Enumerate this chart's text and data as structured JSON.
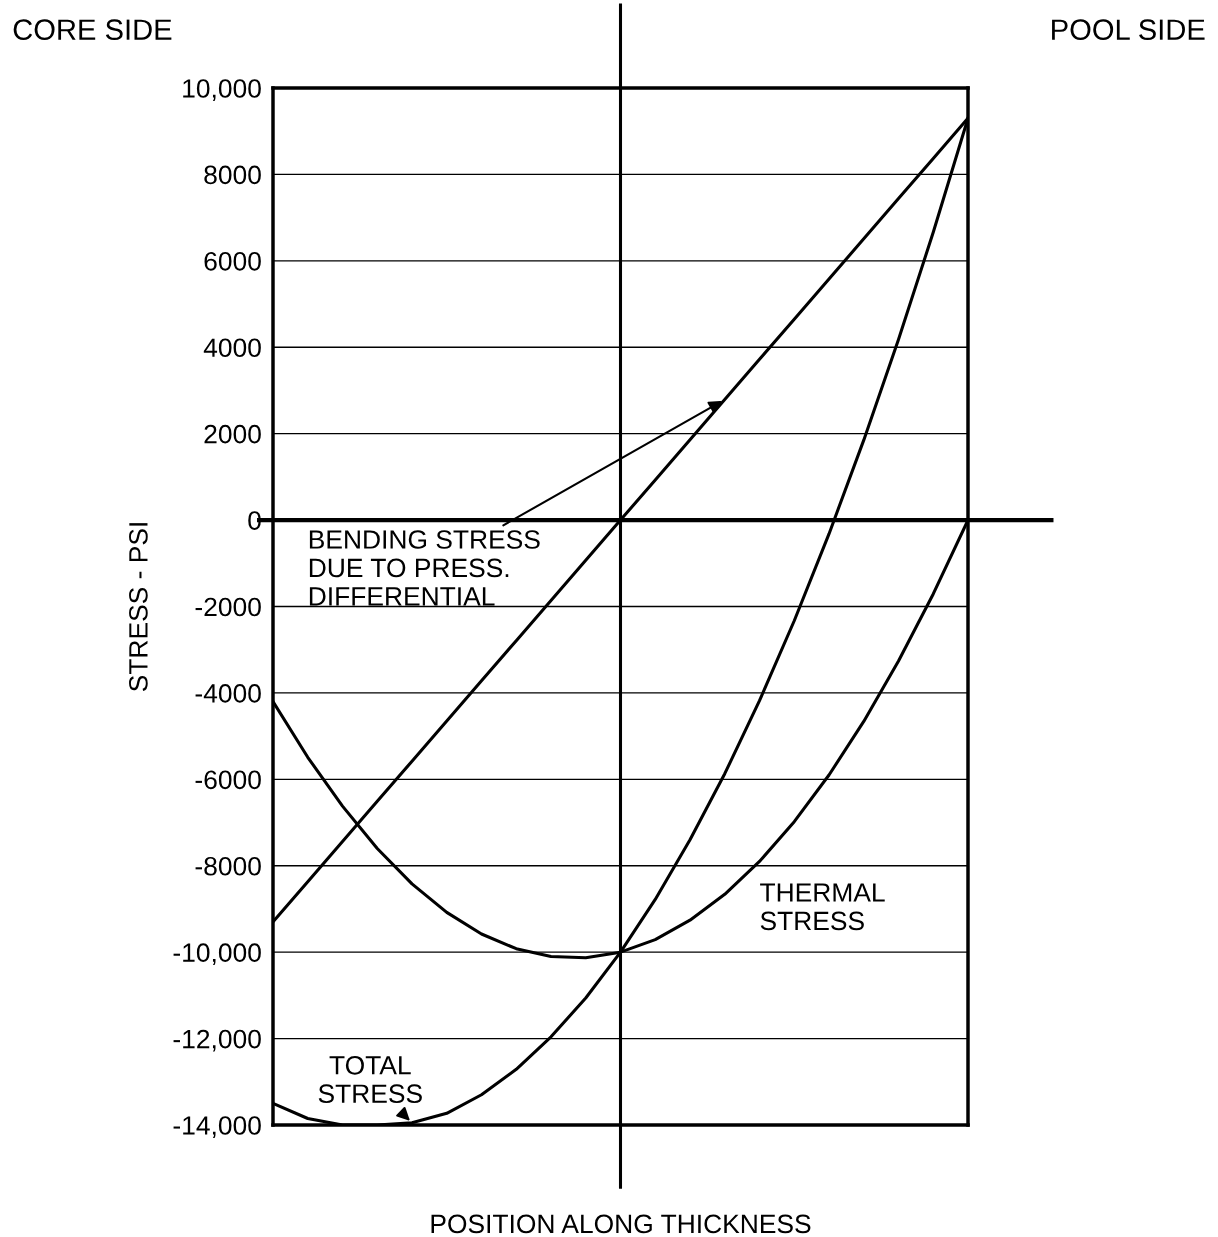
{
  "chart_data": {
    "type": "line",
    "xlabel": "POSITION ALONG THICKNESS",
    "ylabel": "STRESS - PSI",
    "categories": [
      null,
      null,
      null,
      null,
      null,
      null,
      null,
      null,
      null,
      null,
      null,
      null,
      null,
      null,
      null,
      null,
      null,
      null,
      null,
      null,
      null
    ],
    "ylim": [
      -14000,
      10000
    ],
    "yticks": [
      {
        "value": 10000,
        "label": "10,000"
      },
      8000,
      6000,
      4000,
      2000,
      0,
      -2000,
      -4000,
      -6000,
      -8000,
      {
        "value": -10000,
        "label": "-10,000"
      },
      {
        "value": -12000,
        "label": "-12,000"
      },
      {
        "value": -14000,
        "label": "-14,000"
      }
    ],
    "grid": "y",
    "legend": false,
    "marker": "none",
    "line_style": "solid",
    "series": [
      {
        "name": "BENDING STRESS\nDUE TO PRESS.\nDIFFERENTIAL",
        "color": "#000000",
        "values": [
          -9300,
          -8370,
          -7440,
          -6510,
          -5580,
          -4650,
          -3720,
          -2790,
          -1860,
          -930,
          0,
          930,
          1860,
          2790,
          3720,
          4650,
          5580,
          6510,
          7440,
          8370,
          9300
        ]
      },
      {
        "name": "THERMAL\nSTRESS",
        "color": "#000000",
        "values": [
          -4200,
          -5490,
          -6620,
          -7600,
          -8420,
          -9080,
          -9580,
          -9920,
          -10100,
          -10130,
          -10000,
          -9710,
          -9260,
          -8660,
          -7900,
          -6980,
          -5900,
          -4660,
          -3260,
          -1710,
          0
        ]
      },
      {
        "name": "TOTAL\nSTRESS",
        "color": "#000000",
        "values": [
          -13500,
          -13850,
          -14000,
          -14000,
          -13950,
          -13730,
          -13300,
          -12710,
          -11960,
          -11060,
          -10000,
          -8780,
          -7400,
          -5870,
          -4180,
          -2330,
          -320,
          1850,
          4180,
          6660,
          9300
        ]
      }
    ],
    "ref_lines": [
      {
        "axis": "y",
        "value": 0,
        "color": "#000000"
      }
    ],
    "annotations": [
      "CORE SIDE",
      "POOL SIDE"
    ]
  }
}
